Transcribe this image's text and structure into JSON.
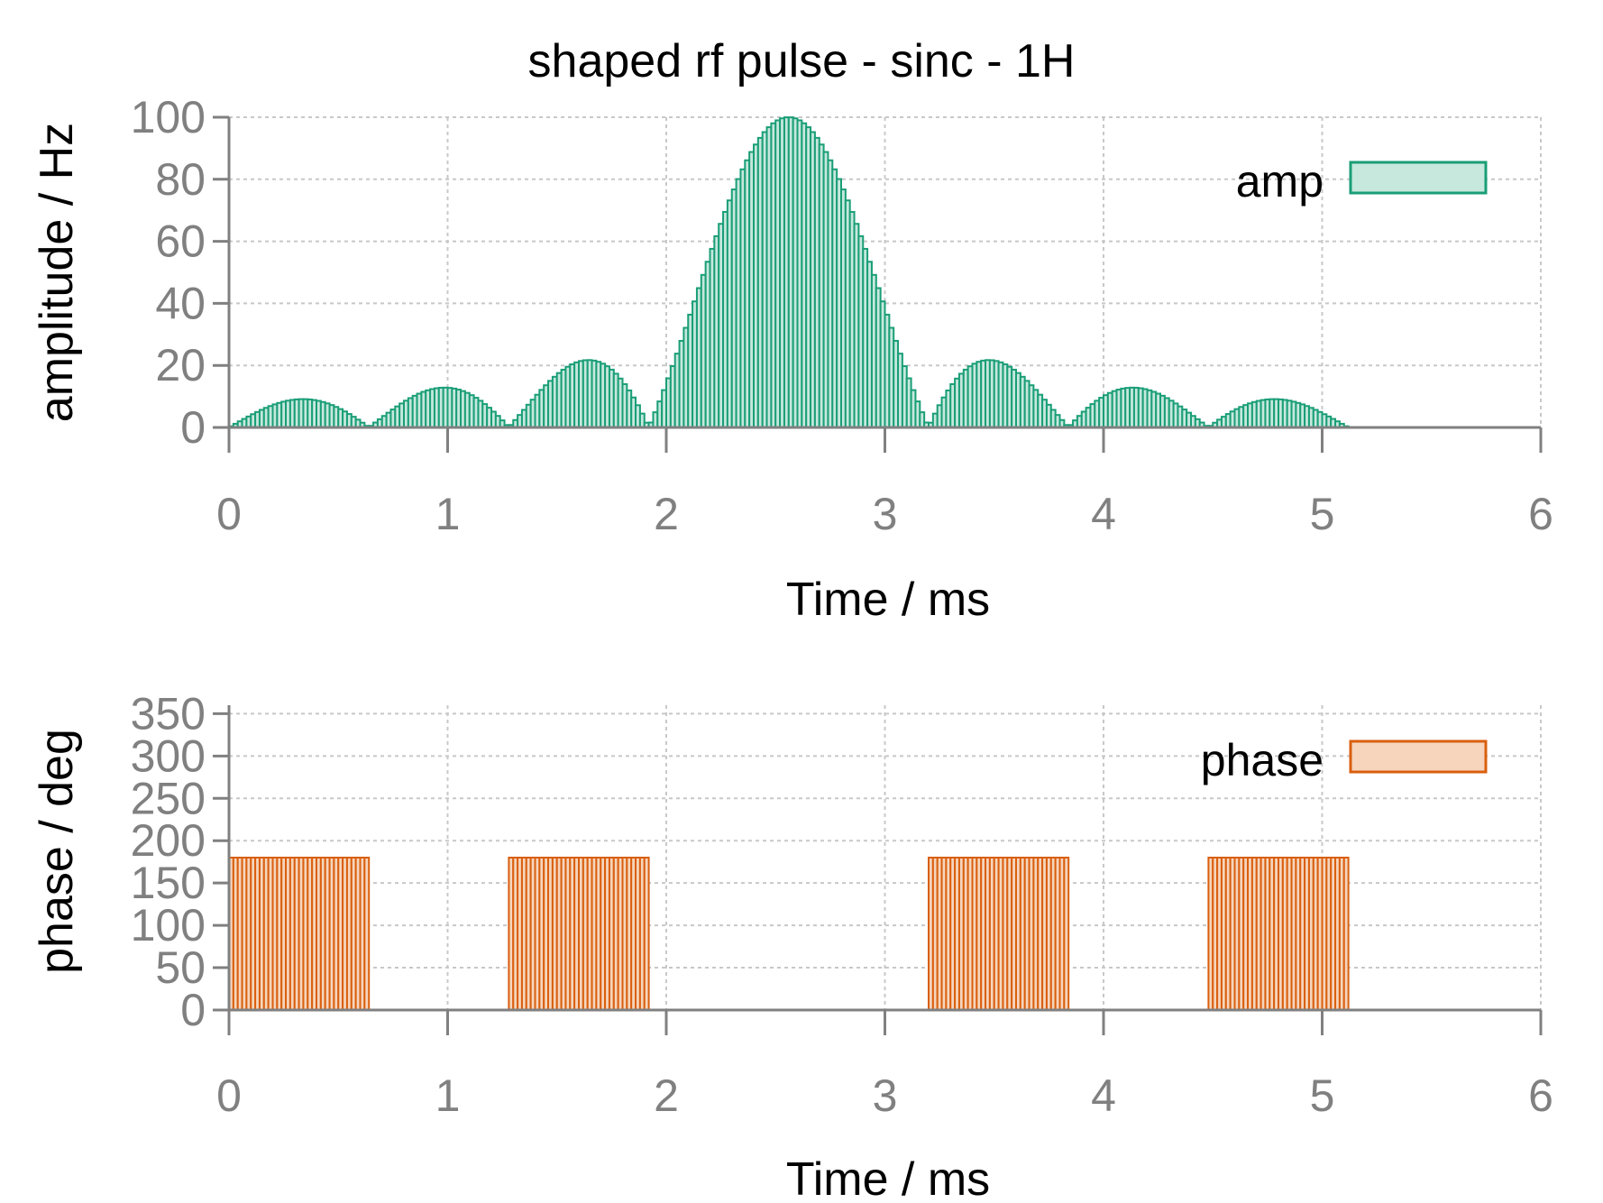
{
  "chart_data": [
    {
      "type": "bar",
      "title": "shaped rf pulse - sinc - 1H",
      "xlabel": "Time / ms",
      "ylabel": "amplitude / Hz",
      "xlim": [
        0,
        6
      ],
      "ylim": [
        0,
        100
      ],
      "xticks": [
        0,
        1,
        2,
        3,
        4,
        5,
        6
      ],
      "yticks": [
        0,
        20,
        40,
        60,
        80,
        100
      ],
      "grid": true,
      "legend_position": "top-right",
      "series": [
        {
          "name": "amp",
          "color": "#1a9e77",
          "fill": "#c6e8dd",
          "shape": "abs(sinc)",
          "x_start": 0,
          "x_end": 5.12,
          "center": 2.56,
          "lobe_width": 0.64,
          "peak": 100,
          "step": 0.02
        }
      ]
    },
    {
      "type": "bar",
      "xlabel": "Time / ms",
      "ylabel": "phase / deg",
      "xlim": [
        0,
        6
      ],
      "ylim": [
        0,
        360
      ],
      "xticks": [
        0,
        1,
        2,
        3,
        4,
        5,
        6
      ],
      "yticks": [
        0,
        50,
        100,
        150,
        200,
        250,
        300,
        350
      ],
      "grid": true,
      "legend_position": "top-right",
      "series": [
        {
          "name": "phase",
          "color": "#d95f0e",
          "fill": "#f6d5bc",
          "step": 0.02,
          "segments": [
            {
              "x_start": 0.0,
              "x_end": 0.64,
              "value": 180
            },
            {
              "x_start": 1.28,
              "x_end": 1.92,
              "value": 180
            },
            {
              "x_start": 3.2,
              "x_end": 3.84,
              "value": 180
            },
            {
              "x_start": 4.48,
              "x_end": 5.12,
              "value": 180
            }
          ]
        }
      ]
    }
  ]
}
